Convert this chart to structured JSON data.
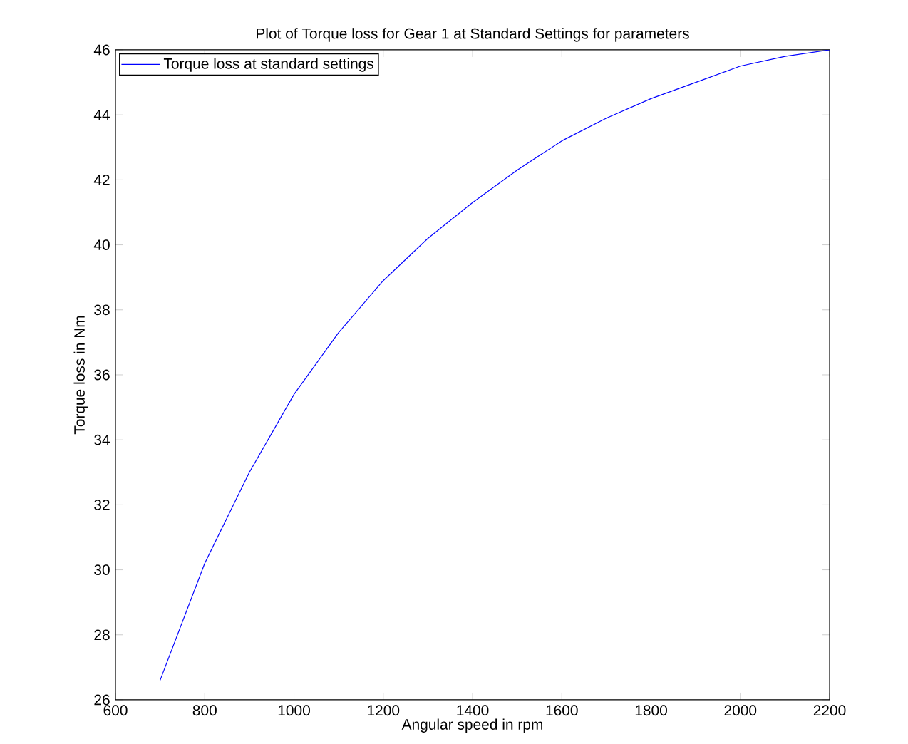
{
  "chart_data": {
    "type": "line",
    "title": "Plot of Torque loss for Gear 1 at Standard Settings for parameters",
    "xlabel": "Angular speed in rpm",
    "ylabel": "Torque loss in Nm",
    "x": [
      700,
      800,
      900,
      1000,
      1100,
      1200,
      1300,
      1400,
      1500,
      1600,
      1700,
      1800,
      1900,
      2000,
      2100,
      2200
    ],
    "series": [
      {
        "name": "Torque loss at standard settings",
        "color": "#0000ff",
        "values": [
          26.6,
          30.2,
          33.0,
          35.4,
          37.3,
          38.9,
          40.2,
          41.3,
          42.3,
          43.2,
          43.9,
          44.5,
          45.0,
          45.5,
          45.8,
          46.0
        ]
      }
    ],
    "xlim": [
      600,
      2200
    ],
    "ylim": [
      26,
      46
    ],
    "xticks": [
      600,
      800,
      1000,
      1200,
      1400,
      1600,
      1800,
      2000,
      2200
    ],
    "yticks": [
      26,
      28,
      30,
      32,
      34,
      36,
      38,
      40,
      42,
      44,
      46
    ],
    "legend": "top left",
    "grid": false,
    "marker": "none",
    "line_style": "solid"
  }
}
